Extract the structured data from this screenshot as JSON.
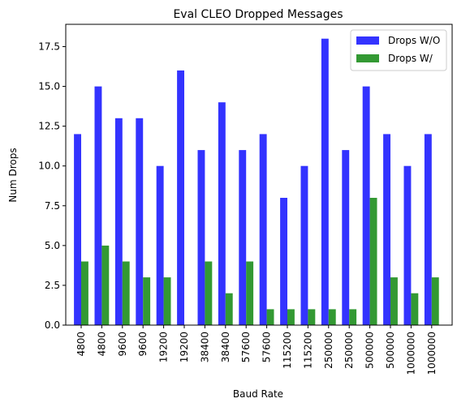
{
  "chart_data": {
    "type": "bar",
    "title": "Eval CLEO Dropped Messages",
    "xlabel": "Baud Rate",
    "ylabel": "Num Drops",
    "categories": [
      "4800",
      "4800",
      "9600",
      "9600",
      "19200",
      "19200",
      "38400",
      "38400",
      "57600",
      "57600",
      "115200",
      "115200",
      "250000",
      "250000",
      "500000",
      "500000",
      "1000000",
      "1000000"
    ],
    "series": [
      {
        "name": "Drops W/O",
        "color": "#3333ff",
        "values": [
          12,
          15,
          13,
          13,
          10,
          16,
          11,
          14,
          11,
          12,
          8,
          10,
          18,
          11,
          15,
          12,
          10,
          12
        ]
      },
      {
        "name": "Drops W/",
        "color": "#339933",
        "values": [
          4,
          5,
          4,
          3,
          3,
          0,
          4,
          2,
          4,
          1,
          1,
          1,
          1,
          1,
          8,
          3,
          2,
          3
        ]
      }
    ],
    "ylim": [
      0,
      18.9
    ],
    "yticks": [
      "0.0",
      "2.5",
      "5.0",
      "7.5",
      "10.0",
      "12.5",
      "15.0",
      "17.5"
    ],
    "grid": false,
    "legend_position": "top-right"
  }
}
